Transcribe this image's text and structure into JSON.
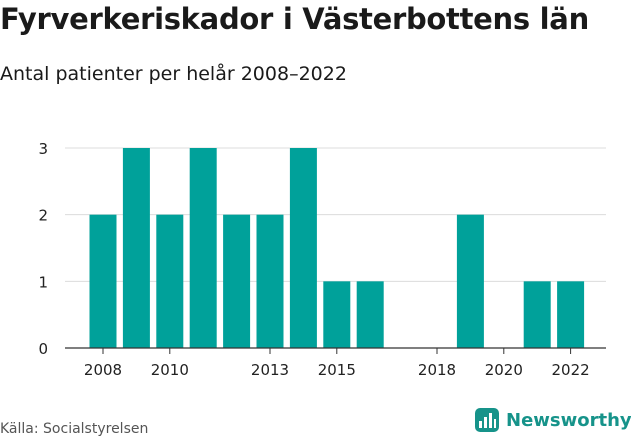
{
  "header": {
    "title": "Fyrverkeriskador i Västerbottens län",
    "subtitle": "Antal patienter per helår 2008–2022"
  },
  "footer": {
    "source": "Källa: Socialstyrelsen",
    "brand": "Newsworthy"
  },
  "colors": {
    "bar": "#00a19a",
    "brand": "#16938a",
    "grid": "#dcdcdc",
    "axis": "#333333"
  },
  "chart_data": {
    "type": "bar",
    "title": "Fyrverkeriskador i Västerbottens län",
    "subtitle": "Antal patienter per helår 2008–2022",
    "xlabel": "",
    "ylabel": "",
    "x": [
      2008,
      2009,
      2010,
      2011,
      2012,
      2013,
      2014,
      2015,
      2016,
      2017,
      2018,
      2019,
      2020,
      2021,
      2022
    ],
    "values": [
      2,
      3,
      2,
      3,
      2,
      2,
      3,
      1,
      1,
      0,
      0,
      2,
      0,
      1,
      1
    ],
    "x_ticks": [
      "2008",
      "2010",
      "2013",
      "2015",
      "2018",
      "2020",
      "2022"
    ],
    "y_ticks": [
      0,
      1,
      2,
      3
    ],
    "ylim": [
      0,
      3
    ],
    "grid": true
  }
}
